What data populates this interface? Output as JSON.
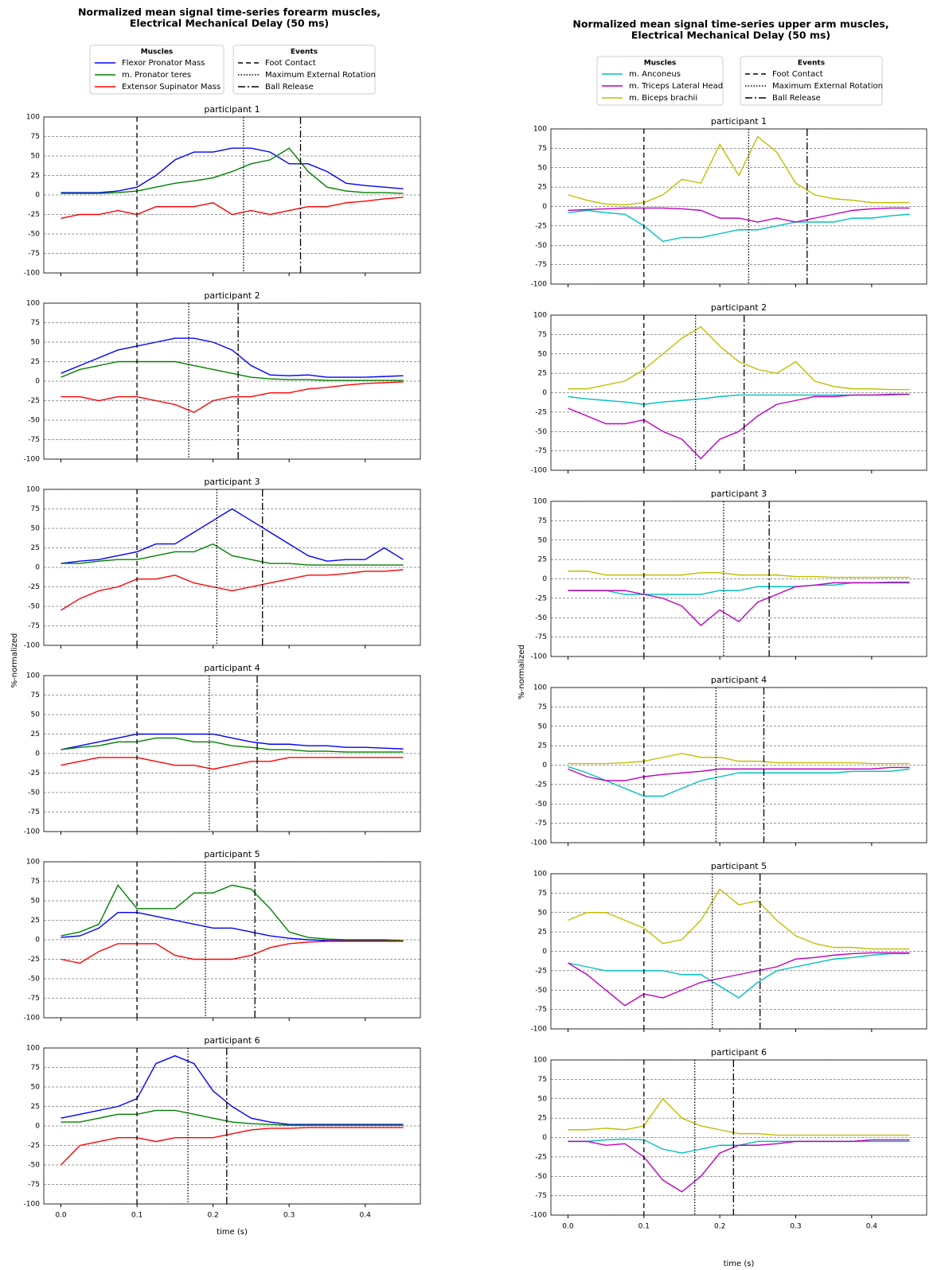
{
  "chart_data": [
    {
      "type": "line",
      "title": "Normalized mean signal time-series forearm muscles,",
      "title2": "Electrical Mechanical Delay (50 ms)",
      "xlabel": "time (s)",
      "ylabel": "%-normalized",
      "legend_muscles_title": "Muscles",
      "legend_events_title": "Events",
      "muscles": [
        {
          "name": "Flexor Pronator Mass",
          "color": "#0000ff"
        },
        {
          "name": "m. Pronator teres",
          "color": "#008000"
        },
        {
          "name": "Extensor Supinator Mass",
          "color": "#ff0000"
        }
      ],
      "events": [
        {
          "name": "Foot Contact",
          "dash": "6,4"
        },
        {
          "name": "Maximum External Rotation",
          "dash": "1.5,2"
        },
        {
          "name": "Ball Release",
          "dash": "9,3,2,3"
        }
      ],
      "x": [
        0,
        0.025,
        0.05,
        0.075,
        0.1,
        0.125,
        0.15,
        0.175,
        0.2,
        0.225,
        0.25,
        0.275,
        0.3,
        0.325,
        0.35,
        0.375,
        0.4,
        0.425,
        0.45
      ],
      "xlim": [
        -0.0225,
        0.4725
      ],
      "xticks": [
        {
          "value": 0,
          "label": "0.0"
        },
        0.1,
        0.2,
        0.3,
        0.4
      ],
      "ylim": [
        -100,
        100
      ],
      "yticks": [
        -100,
        -75,
        -50,
        -25,
        0,
        25,
        50,
        75,
        100
      ],
      "grid": true,
      "subplots": [
        {
          "title": "participant 1",
          "event_times": [
            0.1,
            0.24,
            0.315
          ],
          "series": [
            [
              3,
              3,
              3,
              5,
              10,
              25,
              45,
              55,
              55,
              60,
              60,
              55,
              40,
              40,
              30,
              15,
              12,
              10,
              8
            ],
            [
              2,
              2,
              2,
              3,
              5,
              10,
              15,
              18,
              22,
              30,
              40,
              45,
              60,
              30,
              10,
              5,
              3,
              3,
              2
            ],
            [
              -30,
              -25,
              -25,
              -20,
              -25,
              -15,
              -15,
              -15,
              -10,
              -25,
              -20,
              -25,
              -20,
              -15,
              -15,
              -10,
              -8,
              -5,
              -3
            ]
          ]
        },
        {
          "title": "participant 2",
          "event_times": [
            0.1,
            0.168,
            0.233
          ],
          "series": [
            [
              10,
              20,
              30,
              40,
              45,
              50,
              55,
              55,
              50,
              40,
              20,
              8,
              7,
              8,
              5,
              5,
              5,
              6,
              7
            ],
            [
              5,
              15,
              20,
              25,
              25,
              25,
              25,
              20,
              15,
              10,
              5,
              3,
              2,
              2,
              1,
              1,
              1,
              1,
              1
            ],
            [
              -20,
              -20,
              -25,
              -20,
              -20,
              -25,
              -30,
              -40,
              -25,
              -20,
              -20,
              -15,
              -15,
              -10,
              -8,
              -5,
              -3,
              -2,
              -1
            ]
          ]
        },
        {
          "title": "participant 3",
          "event_times": [
            0.1,
            0.205,
            0.265
          ],
          "series": [
            [
              5,
              8,
              10,
              15,
              20,
              30,
              30,
              45,
              60,
              75,
              60,
              45,
              30,
              15,
              8,
              10,
              10,
              25,
              10
            ],
            [
              5,
              5,
              8,
              10,
              10,
              15,
              20,
              20,
              30,
              15,
              10,
              5,
              5,
              3,
              3,
              3,
              3,
              3,
              3
            ],
            [
              -55,
              -40,
              -30,
              -25,
              -15,
              -15,
              -10,
              -20,
              -25,
              -30,
              -25,
              -20,
              -15,
              -10,
              -10,
              -8,
              -5,
              -5,
              -3
            ]
          ]
        },
        {
          "title": "participant 4",
          "event_times": [
            0.1,
            0.195,
            0.258
          ],
          "series": [
            [
              5,
              10,
              15,
              20,
              25,
              25,
              25,
              25,
              25,
              20,
              15,
              12,
              12,
              10,
              10,
              8,
              8,
              7,
              6
            ],
            [
              5,
              8,
              10,
              15,
              15,
              20,
              20,
              15,
              15,
              10,
              8,
              5,
              5,
              3,
              3,
              2,
              2,
              2,
              2
            ],
            [
              -15,
              -10,
              -5,
              -5,
              -5,
              -10,
              -15,
              -15,
              -20,
              -15,
              -10,
              -10,
              -5,
              -5,
              -5,
              -5,
              -5,
              -5,
              -5
            ]
          ]
        },
        {
          "title": "participant 5",
          "event_times": [
            0.1,
            0.19,
            0.255
          ],
          "series": [
            [
              3,
              5,
              15,
              35,
              35,
              30,
              25,
              20,
              15,
              15,
              10,
              5,
              2,
              0,
              -1,
              -1,
              -1,
              -1,
              -2
            ],
            [
              5,
              10,
              20,
              70,
              40,
              40,
              40,
              60,
              60,
              70,
              65,
              40,
              10,
              3,
              1,
              0,
              0,
              0,
              -1
            ],
            [
              -25,
              -30,
              -15,
              -5,
              -5,
              -5,
              -20,
              -25,
              -25,
              -25,
              -20,
              -10,
              -5,
              -3,
              -2,
              -2,
              -2,
              -2,
              -2
            ]
          ]
        },
        {
          "title": "participant 6",
          "event_times": [
            0.1,
            0.167,
            0.218
          ],
          "series": [
            [
              10,
              15,
              20,
              25,
              35,
              80,
              90,
              80,
              45,
              25,
              10,
              5,
              2,
              2,
              2,
              2,
              2,
              2,
              2
            ],
            [
              5,
              5,
              10,
              15,
              15,
              20,
              20,
              15,
              10,
              5,
              3,
              2,
              1,
              1,
              1,
              1,
              1,
              1,
              1
            ],
            [
              -50,
              -25,
              -20,
              -15,
              -15,
              -20,
              -15,
              -15,
              -15,
              -10,
              -5,
              -3,
              -3,
              -2,
              -2,
              -2,
              -2,
              -2,
              -2
            ]
          ]
        }
      ]
    },
    {
      "type": "line",
      "title": "Normalized mean signal time-series upper arm muscles,",
      "title2": "Electrical Mechanical Delay (50 ms)",
      "xlabel": "time (s)",
      "ylabel": "%-normalized",
      "legend_muscles_title": "Muscles",
      "legend_events_title": "Events",
      "muscles": [
        {
          "name": "m. Anconeus",
          "color": "#00bfbf"
        },
        {
          "name": "m. Triceps Lateral Head",
          "color": "#bf00bf"
        },
        {
          "name": "m. Biceps brachii",
          "color": "#bfbf00"
        }
      ],
      "events": [
        {
          "name": "Foot Contact",
          "dash": "6,4"
        },
        {
          "name": "Maximum External Rotation",
          "dash": "1.5,2"
        },
        {
          "name": "Ball Release",
          "dash": "9,3,2,3"
        }
      ],
      "x": [
        0,
        0.025,
        0.05,
        0.075,
        0.1,
        0.125,
        0.15,
        0.175,
        0.2,
        0.225,
        0.25,
        0.275,
        0.3,
        0.325,
        0.35,
        0.375,
        0.4,
        0.425,
        0.45
      ],
      "xlim": [
        -0.0225,
        0.4725
      ],
      "xticks": [
        {
          "value": 0,
          "label": "0.0"
        },
        0.1,
        0.2,
        0.3,
        0.4
      ],
      "ylim": [
        -100,
        100
      ],
      "yticks": [
        -100,
        -75,
        -50,
        -25,
        0,
        25,
        50,
        75,
        100
      ],
      "grid": true,
      "subplots": [
        {
          "title": "participant 1",
          "event_times": [
            0.1,
            0.238,
            0.315
          ],
          "series": [
            [
              -8,
              -5,
              -8,
              -10,
              -25,
              -45,
              -40,
              -40,
              -35,
              -30,
              -30,
              -25,
              -20,
              -20,
              -20,
              -15,
              -15,
              -12,
              -10
            ],
            [
              -5,
              -4,
              -3,
              -2,
              -2,
              -2,
              -3,
              -5,
              -15,
              -15,
              -20,
              -15,
              -20,
              -15,
              -10,
              -5,
              -3,
              -2,
              -2
            ],
            [
              15,
              8,
              3,
              2,
              5,
              15,
              35,
              30,
              80,
              40,
              90,
              70,
              30,
              15,
              10,
              8,
              5,
              5,
              5
            ]
          ]
        },
        {
          "title": "participant 2",
          "event_times": [
            0.1,
            0.168,
            0.232
          ],
          "series": [
            [
              -5,
              -8,
              -10,
              -12,
              -15,
              -12,
              -10,
              -8,
              -5,
              -3,
              -3,
              -3,
              -3,
              -3,
              -3,
              -3,
              -3,
              -3,
              -2
            ],
            [
              -20,
              -30,
              -40,
              -40,
              -35,
              -50,
              -60,
              -85,
              -60,
              -50,
              -30,
              -15,
              -10,
              -5,
              -5,
              -3,
              -3,
              -2,
              -2
            ],
            [
              5,
              5,
              10,
              15,
              30,
              50,
              70,
              85,
              60,
              40,
              30,
              25,
              40,
              15,
              8,
              5,
              5,
              4,
              4
            ]
          ]
        },
        {
          "title": "participant 3",
          "event_times": [
            0.1,
            0.205,
            0.265
          ],
          "series": [
            [
              -15,
              -15,
              -15,
              -20,
              -20,
              -20,
              -20,
              -20,
              -15,
              -15,
              -10,
              -10,
              -10,
              -8,
              -8,
              -5,
              -5,
              -4,
              -4
            ],
            [
              -15,
              -15,
              -15,
              -15,
              -20,
              -25,
              -35,
              -60,
              -40,
              -55,
              -30,
              -20,
              -10,
              -8,
              -5,
              -5,
              -5,
              -5,
              -5
            ],
            [
              10,
              10,
              5,
              5,
              5,
              5,
              5,
              8,
              8,
              5,
              5,
              5,
              3,
              3,
              2,
              2,
              2,
              2,
              2
            ]
          ]
        },
        {
          "title": "participant 4",
          "event_times": [
            0.1,
            0.195,
            0.258
          ],
          "series": [
            [
              -2,
              -10,
              -20,
              -30,
              -40,
              -40,
              -30,
              -20,
              -15,
              -10,
              -10,
              -10,
              -10,
              -10,
              -10,
              -8,
              -8,
              -8,
              -5
            ],
            [
              -5,
              -15,
              -20,
              -20,
              -15,
              -12,
              -10,
              -8,
              -5,
              -5,
              -5,
              -5,
              -5,
              -5,
              -5,
              -5,
              -5,
              -3,
              -3
            ],
            [
              2,
              2,
              2,
              3,
              5,
              10,
              15,
              10,
              10,
              5,
              5,
              3,
              3,
              3,
              3,
              3,
              2,
              2,
              2
            ]
          ]
        },
        {
          "title": "participant 5",
          "event_times": [
            0.1,
            0.19,
            0.253
          ],
          "series": [
            [
              -15,
              -20,
              -25,
              -25,
              -25,
              -25,
              -30,
              -30,
              -45,
              -60,
              -40,
              -25,
              -20,
              -15,
              -10,
              -8,
              -5,
              -3,
              -3
            ],
            [
              -15,
              -30,
              -50,
              -70,
              -55,
              -60,
              -50,
              -40,
              -35,
              -30,
              -25,
              -20,
              -10,
              -8,
              -5,
              -3,
              -2,
              -2,
              -2
            ],
            [
              40,
              50,
              50,
              40,
              30,
              10,
              15,
              40,
              80,
              60,
              65,
              40,
              20,
              10,
              5,
              5,
              3,
              3,
              3
            ]
          ]
        },
        {
          "title": "participant 6",
          "event_times": [
            0.1,
            0.167,
            0.218
          ],
          "series": [
            [
              -5,
              -5,
              -3,
              -2,
              -3,
              -15,
              -20,
              -15,
              -10,
              -10,
              -5,
              -5,
              -5,
              -5,
              -5,
              -5,
              -5,
              -5,
              -5
            ],
            [
              -5,
              -5,
              -10,
              -8,
              -25,
              -55,
              -70,
              -50,
              -20,
              -10,
              -10,
              -8,
              -5,
              -5,
              -5,
              -5,
              -3,
              -3,
              -3
            ],
            [
              10,
              10,
              12,
              10,
              15,
              50,
              25,
              15,
              10,
              5,
              5,
              3,
              3,
              3,
              3,
              3,
              3,
              3,
              3
            ]
          ]
        }
      ]
    }
  ]
}
